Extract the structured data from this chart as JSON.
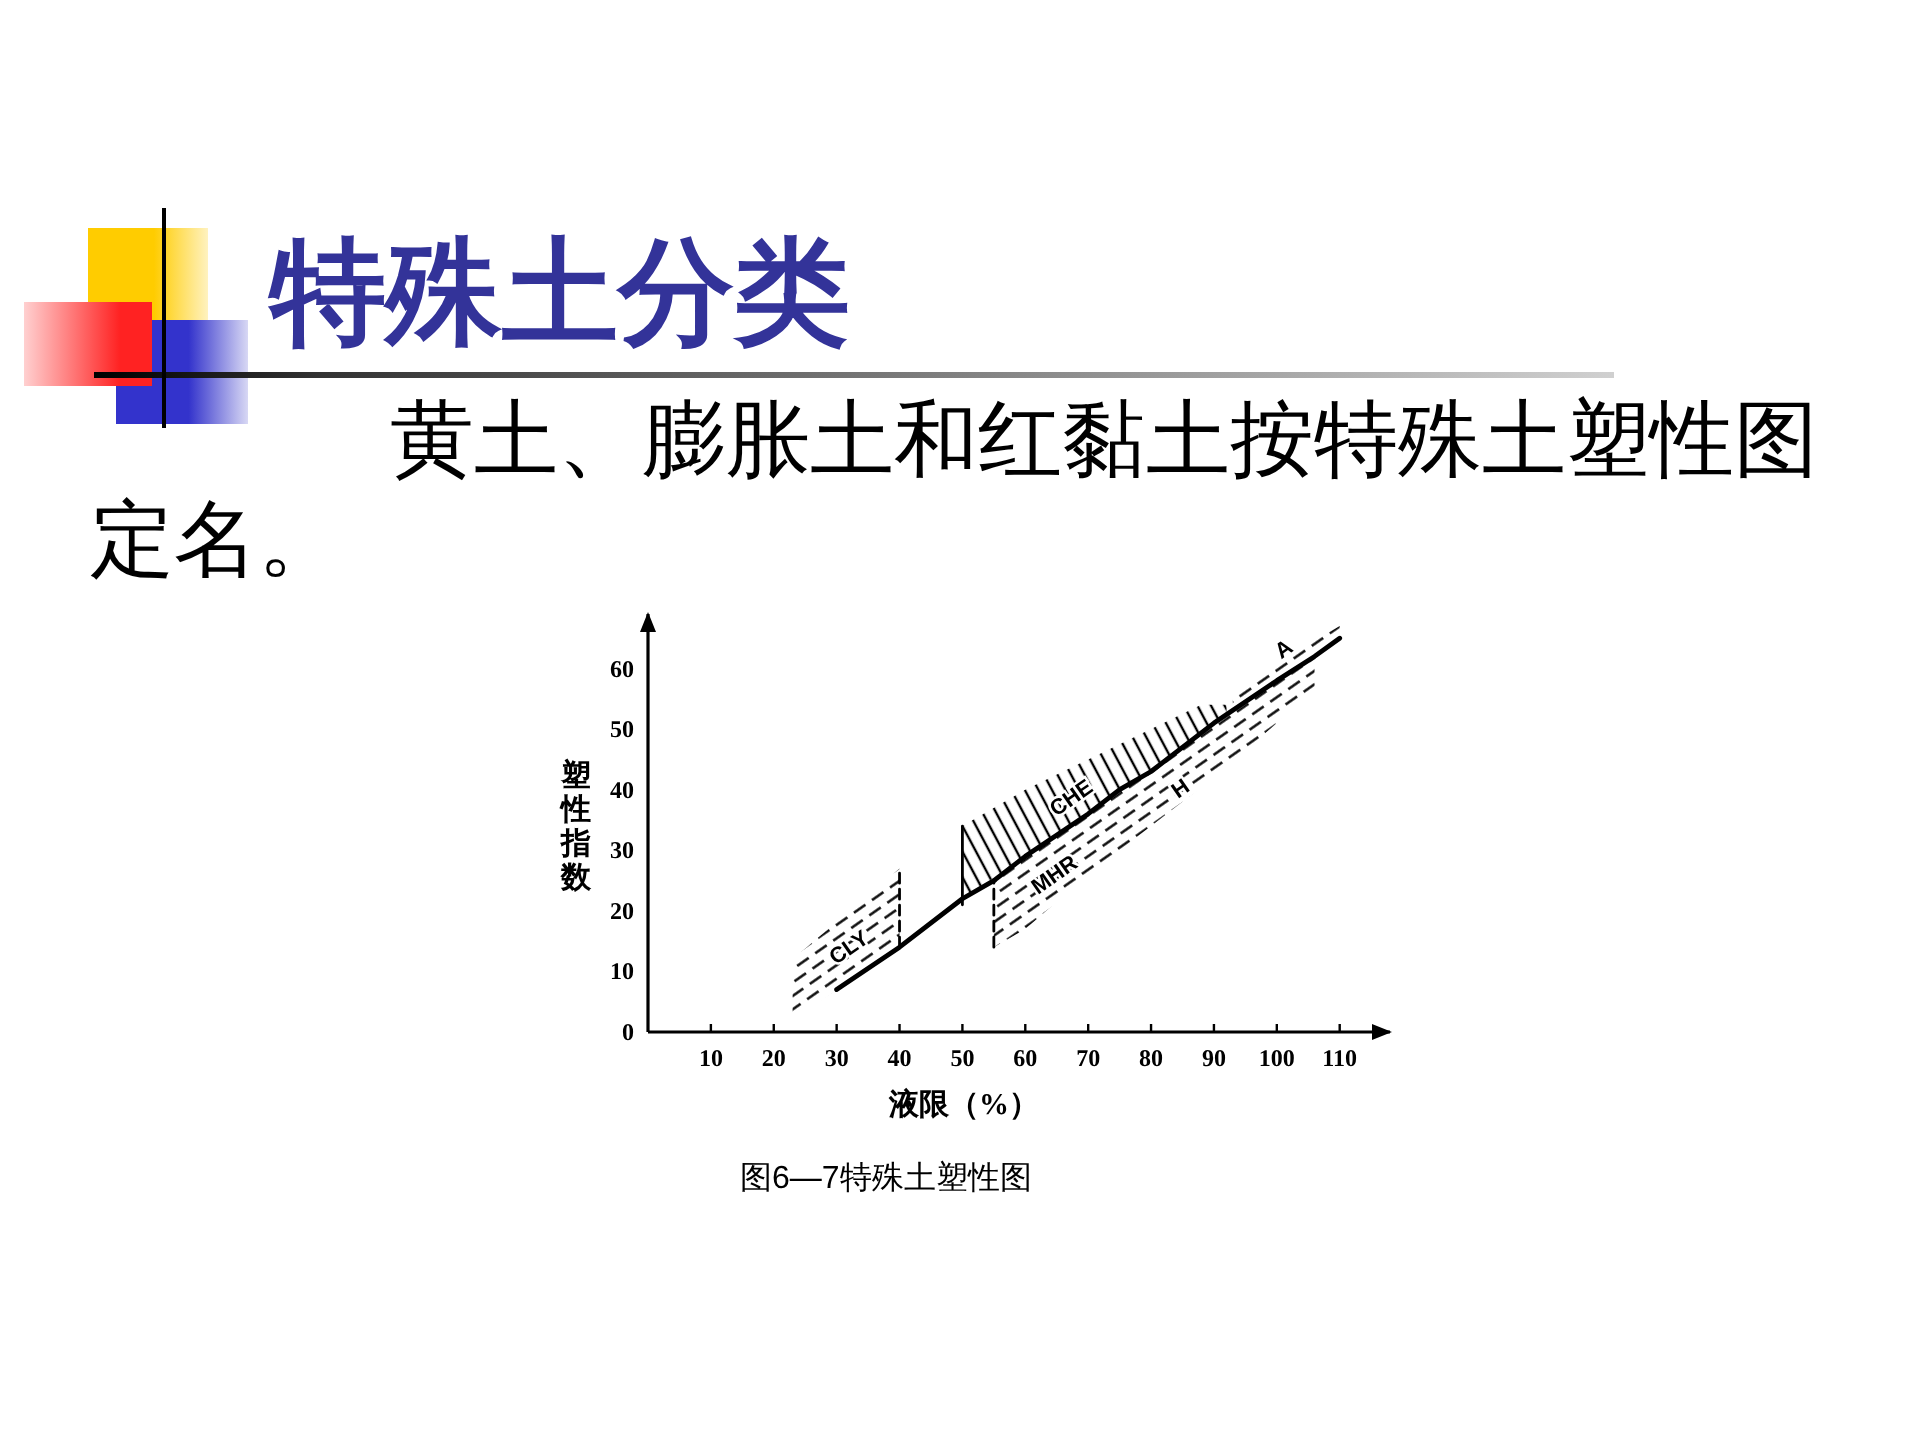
{
  "chart_data": {
    "type": "line",
    "title": "特殊土分类",
    "subtitle": "黄土、膨胀土和红黏土按特殊土塑性图定名。",
    "xlabel": "液限（%）",
    "ylabel": "塑性指数",
    "xlim": [
      0,
      118
    ],
    "ylim": [
      0,
      69
    ],
    "xticks": [
      10,
      20,
      30,
      40,
      50,
      60,
      70,
      80,
      90,
      100,
      110
    ],
    "yticks": [
      0,
      10,
      20,
      30,
      40,
      50,
      60
    ],
    "series": [
      {
        "name": "CLY",
        "type": "area",
        "line_style": "dashed",
        "color": "#000000",
        "x": [
          23,
          40
        ],
        "values": [
          12,
          27
        ]
      },
      {
        "name": "CHE",
        "type": "area",
        "line_style": "solid",
        "color": "#000000",
        "x": [
          50,
          60,
          70,
          80,
          88,
          92
        ],
        "values": [
          34,
          40,
          45,
          50,
          54,
          54
        ]
      },
      {
        "type": "area",
        "line_style": "dashed",
        "color": "#000000",
        "x": [
          93,
          100,
          110
        ],
        "values": [
          56,
          61,
          67
        ]
      },
      {
        "line_style": "dashed",
        "color": "#000000",
        "x": [
          40,
          40
        ],
        "values": [
          14,
          27
        ]
      },
      {
        "line_style": "solid",
        "color": "#000000",
        "x": [
          50,
          50
        ],
        "values": [
          21,
          34
        ]
      },
      {
        "line_style": "dashed",
        "color": "#000000",
        "x": [
          55,
          55
        ],
        "values": [
          14,
          25
        ]
      },
      {
        "name": "A",
        "line_style": "solid",
        "color": "#000000",
        "x": [
          30,
          40,
          50,
          55,
          60,
          70,
          75,
          80,
          90,
          100,
          106,
          110
        ],
        "values": [
          7,
          14,
          22,
          25,
          29,
          36,
          40,
          43,
          51,
          58,
          62,
          65
        ],
        "lower": [
          null,
          null,
          null,
          14,
          17,
          26,
          30,
          34,
          42,
          51,
          57,
          null
        ],
        "upper": [
          null,
          null,
          null,
          25,
          29,
          36,
          40,
          43,
          51,
          58,
          62,
          null
        ]
      }
    ],
    "annotations": [
      "MHR",
      "H",
      "图6—7特殊土塑性图"
    ]
  }
}
